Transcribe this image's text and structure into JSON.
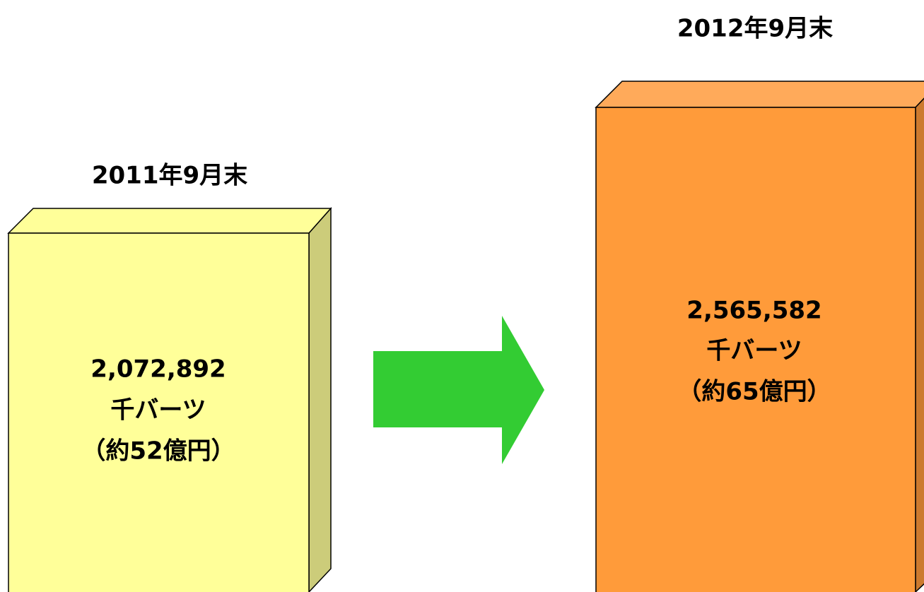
{
  "boxes": [
    {
      "heading": "2011年9月末",
      "lines": [
        "2,072,892",
        "千バーツ",
        "（約52億円）"
      ]
    },
    {
      "heading": "2012年9月末",
      "lines": [
        "2,565,582",
        "千バーツ",
        "（約65億円）"
      ]
    }
  ]
}
